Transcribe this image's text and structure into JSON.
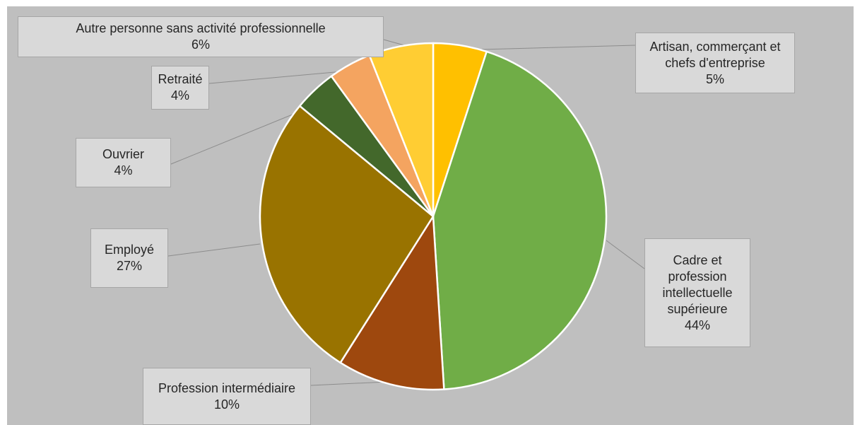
{
  "chart_data": {
    "type": "pie",
    "slices": [
      {
        "label": "Artisan, commerçant et\nchefs d'entreprise",
        "value": 5,
        "pct_label": "5%",
        "color": "#ffc000"
      },
      {
        "label": "Cadre et\nprofession\nintellectuelle\nsupérieure",
        "value": 44,
        "pct_label": "44%",
        "color": "#70ad47"
      },
      {
        "label": "Profession intermédiaire",
        "value": 10,
        "pct_label": "10%",
        "color": "#9e480e"
      },
      {
        "label": "Employé",
        "value": 27,
        "pct_label": "27%",
        "color": "#997300"
      },
      {
        "label": "Ouvrier",
        "value": 4,
        "pct_label": "4%",
        "color": "#43682b"
      },
      {
        "label": "Retraité",
        "value": 4,
        "pct_label": "4%",
        "color": "#f4a460"
      },
      {
        "label": "Autre personne sans activité professionnelle",
        "value": 6,
        "pct_label": "6%",
        "color": "#ffcd33"
      }
    ],
    "background": "#bfbfbf",
    "slice_border": "#ffffff",
    "legend": "none (data callouts)"
  }
}
